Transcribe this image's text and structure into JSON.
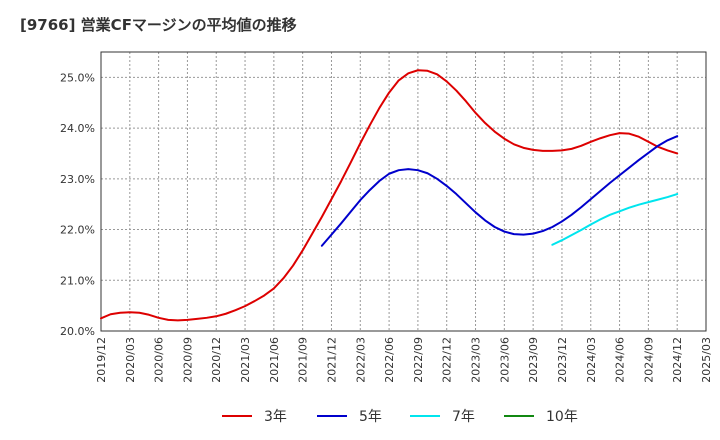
{
  "title": "[9766]  営業CFマージンの平均値の推移",
  "chart_data": {
    "type": "line",
    "x_ticks": [
      "2019/12",
      "2020/03",
      "2020/06",
      "2020/09",
      "2020/12",
      "2021/03",
      "2021/06",
      "2021/09",
      "2021/12",
      "2022/03",
      "2022/06",
      "2022/09",
      "2022/12",
      "2023/03",
      "2023/06",
      "2023/09",
      "2023/12",
      "2024/03",
      "2024/06",
      "2024/09",
      "2024/12",
      "2025/03"
    ],
    "y_ticks": [
      "20.0%",
      "21.0%",
      "22.0%",
      "23.0%",
      "24.0%",
      "25.0%"
    ],
    "ylim": [
      20.0,
      25.5
    ],
    "xlim": [
      "2019/12",
      "2025/03"
    ],
    "grid": true,
    "legend_position": "bottom",
    "series": [
      {
        "name": "3年",
        "color": "#dd0000",
        "points": [
          [
            "2019/12",
            20.25
          ],
          [
            "2020/01",
            20.33
          ],
          [
            "2020/02",
            20.36
          ],
          [
            "2020/03",
            20.37
          ],
          [
            "2020/04",
            20.36
          ],
          [
            "2020/05",
            20.32
          ],
          [
            "2020/06",
            20.26
          ],
          [
            "2020/07",
            20.22
          ],
          [
            "2020/08",
            20.21
          ],
          [
            "2020/09",
            20.22
          ],
          [
            "2020/10",
            20.24
          ],
          [
            "2020/11",
            20.26
          ],
          [
            "2020/12",
            20.29
          ],
          [
            "2021/01",
            20.34
          ],
          [
            "2021/02",
            20.41
          ],
          [
            "2021/03",
            20.49
          ],
          [
            "2021/04",
            20.59
          ],
          [
            "2021/05",
            20.7
          ],
          [
            "2021/06",
            20.84
          ],
          [
            "2021/07",
            21.04
          ],
          [
            "2021/08",
            21.29
          ],
          [
            "2021/09",
            21.59
          ],
          [
            "2021/10",
            21.92
          ],
          [
            "2021/11",
            22.25
          ],
          [
            "2021/12",
            22.6
          ],
          [
            "2021/12",
            22.6
          ],
          [
            "2022/01",
            22.95
          ],
          [
            "2022/02",
            23.32
          ],
          [
            "2022/03",
            23.7
          ],
          [
            "2022/04",
            24.06
          ],
          [
            "2022/05",
            24.4
          ],
          [
            "2022/06",
            24.7
          ],
          [
            "2022/07",
            24.94
          ],
          [
            "2022/08",
            25.08
          ],
          [
            "2022/09",
            25.14
          ],
          [
            "2022/10",
            25.13
          ],
          [
            "2022/11",
            25.06
          ],
          [
            "2022/12",
            24.92
          ],
          [
            "2023/01",
            24.74
          ],
          [
            "2023/02",
            24.53
          ],
          [
            "2023/03",
            24.3
          ],
          [
            "2023/04",
            24.1
          ],
          [
            "2023/05",
            23.93
          ],
          [
            "2023/06",
            23.79
          ],
          [
            "2023/07",
            23.68
          ],
          [
            "2023/08",
            23.61
          ],
          [
            "2023/09",
            23.57
          ],
          [
            "2023/10",
            23.55
          ],
          [
            "2023/11",
            23.55
          ],
          [
            "2023/12",
            23.56
          ],
          [
            "2024/01",
            23.59
          ],
          [
            "2024/02",
            23.65
          ],
          [
            "2024/03",
            23.73
          ],
          [
            "2024/04",
            23.8
          ],
          [
            "2024/05",
            23.86
          ],
          [
            "2024/06",
            23.9
          ],
          [
            "2024/07",
            23.89
          ],
          [
            "2024/08",
            23.83
          ],
          [
            "2024/09",
            23.73
          ],
          [
            "2024/10",
            23.63
          ],
          [
            "2024/11",
            23.56
          ],
          [
            "2024/12",
            23.5
          ]
        ]
      },
      {
        "name": "5年",
        "color": "#0000cc",
        "points": [
          [
            "2021/11",
            21.68
          ],
          [
            "2021/12",
            21.9
          ],
          [
            "2022/01",
            22.12
          ],
          [
            "2022/02",
            22.35
          ],
          [
            "2022/03",
            22.58
          ],
          [
            "2022/04",
            22.78
          ],
          [
            "2022/05",
            22.96
          ],
          [
            "2022/06",
            23.1
          ],
          [
            "2022/07",
            23.17
          ],
          [
            "2022/08",
            23.19
          ],
          [
            "2022/09",
            23.17
          ],
          [
            "2022/10",
            23.11
          ],
          [
            "2022/11",
            23.0
          ],
          [
            "2022/12",
            22.86
          ],
          [
            "2023/01",
            22.7
          ],
          [
            "2023/02",
            22.52
          ],
          [
            "2023/03",
            22.34
          ],
          [
            "2023/04",
            22.18
          ],
          [
            "2023/05",
            22.05
          ],
          [
            "2023/06",
            21.96
          ],
          [
            "2023/07",
            21.91
          ],
          [
            "2023/08",
            21.9
          ],
          [
            "2023/09",
            21.92
          ],
          [
            "2023/10",
            21.97
          ],
          [
            "2023/11",
            22.05
          ],
          [
            "2023/12",
            22.16
          ],
          [
            "2024/01",
            22.29
          ],
          [
            "2024/02",
            22.44
          ],
          [
            "2024/03",
            22.6
          ],
          [
            "2024/04",
            22.76
          ],
          [
            "2024/05",
            22.92
          ],
          [
            "2024/06",
            23.07
          ],
          [
            "2024/07",
            23.22
          ],
          [
            "2024/08",
            23.37
          ],
          [
            "2024/09",
            23.51
          ],
          [
            "2024/10",
            23.65
          ],
          [
            "2024/11",
            23.76
          ],
          [
            "2024/12",
            23.84
          ]
        ]
      },
      {
        "name": "7年",
        "color": "#00e5ee",
        "points": [
          [
            "2023/11",
            21.7
          ],
          [
            "2023/12",
            21.79
          ],
          [
            "2024/01",
            21.89
          ],
          [
            "2024/02",
            21.99
          ],
          [
            "2024/03",
            22.1
          ],
          [
            "2024/04",
            22.2
          ],
          [
            "2024/05",
            22.29
          ],
          [
            "2024/06",
            22.36
          ],
          [
            "2024/07",
            22.43
          ],
          [
            "2024/08",
            22.49
          ],
          [
            "2024/09",
            22.54
          ],
          [
            "2024/10",
            22.59
          ],
          [
            "2024/11",
            22.64
          ],
          [
            "2024/12",
            22.7
          ]
        ]
      },
      {
        "name": "10年",
        "color": "#118811",
        "points": []
      }
    ]
  }
}
